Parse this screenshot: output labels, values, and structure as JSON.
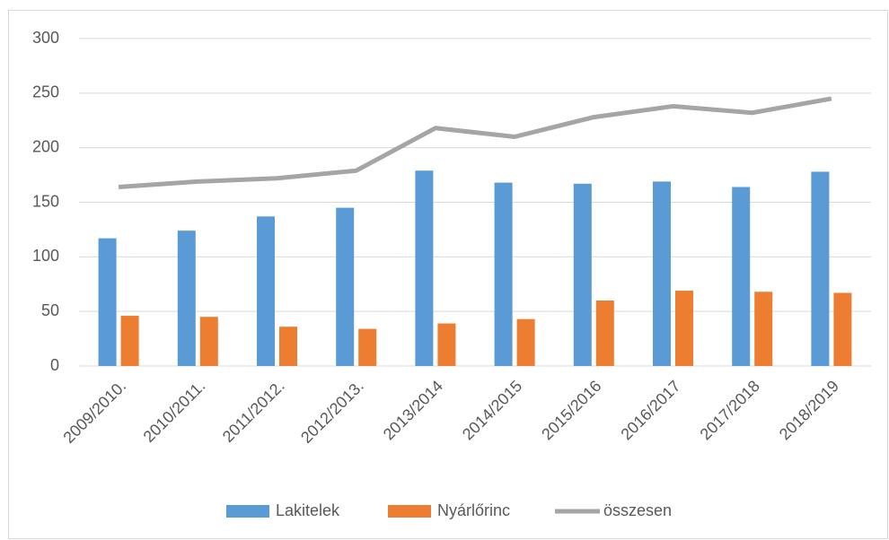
{
  "chart_data": {
    "type": "bar",
    "categories": [
      "2009/2010.",
      "2010/2011.",
      "2011/2012.",
      "2012/2013.",
      "2013/2014",
      "2014/2015",
      "2015/2016",
      "2016/2017",
      "2017/2018",
      "2018/2019"
    ],
    "series": [
      {
        "name": "Lakitelek",
        "color": "#5b9bd5",
        "type": "bar",
        "values": [
          117,
          124,
          137,
          145,
          179,
          168,
          167,
          169,
          164,
          178
        ]
      },
      {
        "name": "Nyárlőrinc",
        "color": "#ed7d31",
        "type": "bar",
        "values": [
          46,
          45,
          36,
          34,
          39,
          43,
          60,
          69,
          68,
          67
        ]
      },
      {
        "name": "összesen",
        "color": "#a5a5a5",
        "type": "line",
        "values": [
          164,
          169,
          172,
          179,
          218,
          210,
          228,
          238,
          232,
          245
        ]
      }
    ],
    "ylim": [
      0,
      300
    ],
    "yticks": [
      0,
      50,
      100,
      150,
      200,
      250,
      300
    ],
    "grid": true,
    "legend": "bottom"
  }
}
